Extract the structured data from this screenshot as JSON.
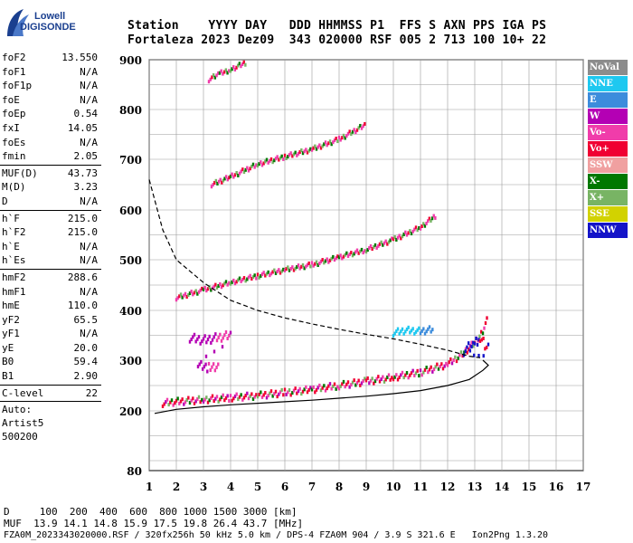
{
  "logo": {
    "line1": "Lowell",
    "line2": "DIGISONDE",
    "color": "#1a3f8f"
  },
  "header": {
    "line1": "Station    YYYY DAY   DDD HHMMSS P1  FFS S AXN PPS IGA PS",
    "line2": "Fortaleza 2023 Dez09  343 020000 RSF 005 2 713 100 10+ 22"
  },
  "params": [
    {
      "label": "foF2",
      "value": "13.550"
    },
    {
      "label": "foF1",
      "value": "N/A"
    },
    {
      "label": "foF1p",
      "value": "N/A"
    },
    {
      "label": "foE",
      "value": "N/A"
    },
    {
      "label": "foEp",
      "value": "0.54"
    },
    {
      "label": "fxI",
      "value": "14.05"
    },
    {
      "label": "foEs",
      "value": "N/A"
    },
    {
      "label": "fmin",
      "value": "2.05"
    },
    {
      "sep": true
    },
    {
      "label": "MUF(D)",
      "value": "43.73"
    },
    {
      "label": "M(D)",
      "value": "3.23"
    },
    {
      "label": "D",
      "value": "N/A"
    },
    {
      "sep": true
    },
    {
      "label": "h`F",
      "value": "215.0"
    },
    {
      "label": "h`F2",
      "value": "215.0"
    },
    {
      "label": "h`E",
      "value": "N/A"
    },
    {
      "label": "h`Es",
      "value": "N/A"
    },
    {
      "sep": true
    },
    {
      "label": "hmF2",
      "value": "288.6"
    },
    {
      "label": "hmF1",
      "value": "N/A"
    },
    {
      "label": "hmE",
      "value": "110.0"
    },
    {
      "label": "yF2",
      "value": "65.5"
    },
    {
      "label": "yF1",
      "value": "N/A"
    },
    {
      "label": "yE",
      "value": "20.0"
    },
    {
      "label": "B0",
      "value": "59.4"
    },
    {
      "label": "B1",
      "value": "2.90"
    },
    {
      "sep": true
    },
    {
      "label": "C-level",
      "value": "22"
    },
    {
      "sep": true
    }
  ],
  "auto": {
    "line1": "Auto:",
    "line2": "Artist5",
    "line3": "500200"
  },
  "legend": [
    {
      "label": "NoVal",
      "color": "#8c8c8c"
    },
    {
      "label": "NNE",
      "color": "#1ec8f0"
    },
    {
      "label": "E",
      "color": "#3c8cdc"
    },
    {
      "label": "W",
      "color": "#b400b4"
    },
    {
      "label": "Vo-",
      "color": "#f03caa"
    },
    {
      "label": "Vo+",
      "color": "#f00032"
    },
    {
      "label": "SSW",
      "color": "#f0a0a0"
    },
    {
      "label": "X-",
      "color": "#007800"
    },
    {
      "label": "X+",
      "color": "#78b464"
    },
    {
      "label": "SSE",
      "color": "#d2d200"
    },
    {
      "label": "NNW",
      "color": "#1414c8"
    }
  ],
  "footer": {
    "line1": "D     100  200  400  600  800 1000 1500 3000 [km]",
    "line2": "MUF  13.9 14.1 14.8 15.9 17.5 19.8 26.4 43.7 [MHz]",
    "line3": "FZA0M_2023343020000.RSF / 320fx256h 50 kHz 5.0 km / DPS-4 FZA0M 904 / 3.9 S 321.6 E   Ion2Png 1.3.20"
  },
  "chart_data": {
    "type": "scatter",
    "xlim": [
      1,
      17
    ],
    "ylim": [
      80,
      900
    ],
    "y_scale": "reciprocal (F layer height) -- heights mapped nonlinearly",
    "x_ticks": [
      1,
      2,
      3,
      4,
      5,
      6,
      7,
      8,
      9,
      10,
      11,
      12,
      13,
      14,
      15,
      16,
      17
    ],
    "y_ticks": [
      80,
      200,
      300,
      400,
      500,
      600,
      700,
      800,
      900
    ],
    "grid": true,
    "xlabel": "",
    "ylabel": "",
    "traces": [
      {
        "name": "F2 O-trace",
        "points": [
          [
            1.5,
            215
          ],
          [
            2,
            218
          ],
          [
            3,
            222
          ],
          [
            4,
            226
          ],
          [
            5,
            230
          ],
          [
            6,
            236
          ],
          [
            7,
            242
          ],
          [
            8,
            250
          ],
          [
            9,
            258
          ],
          [
            10,
            266
          ],
          [
            11,
            276
          ],
          [
            12,
            292
          ],
          [
            12.5,
            310
          ],
          [
            13,
            335
          ],
          [
            13.3,
            360
          ],
          [
            13.5,
            385
          ]
        ]
      },
      {
        "name": "F2 2nd hop",
        "points": [
          [
            2,
            425
          ],
          [
            3,
            440
          ],
          [
            4,
            455
          ],
          [
            5,
            468
          ],
          [
            6,
            480
          ],
          [
            7,
            490
          ],
          [
            8,
            505
          ],
          [
            9,
            520
          ],
          [
            10,
            540
          ],
          [
            11,
            565
          ],
          [
            11.6,
            590
          ]
        ]
      },
      {
        "name": "F2 3rd hop",
        "points": [
          [
            3.3,
            650
          ],
          [
            4,
            665
          ],
          [
            5,
            690
          ],
          [
            6,
            705
          ],
          [
            7,
            720
          ],
          [
            8,
            740
          ],
          [
            9,
            770
          ]
        ]
      },
      {
        "name": "F2 4th hop",
        "points": [
          [
            3.2,
            860
          ],
          [
            3.6,
            872
          ],
          [
            4,
            880
          ],
          [
            4.6,
            895
          ]
        ]
      },
      {
        "name": "Es/W cluster",
        "points": [
          [
            2.5,
            345
          ],
          [
            3,
            340
          ],
          [
            3.5,
            345
          ],
          [
            4,
            350
          ],
          [
            2.8,
            290
          ],
          [
            3.2,
            285
          ],
          [
            3.6,
            290
          ]
        ]
      },
      {
        "name": "NNE cluster",
        "points": [
          [
            10,
            355
          ],
          [
            10.5,
            360
          ],
          [
            11,
            358
          ],
          [
            11.5,
            362
          ]
        ]
      },
      {
        "name": "NNW cluster",
        "points": [
          [
            12.6,
            320
          ],
          [
            13,
            330
          ],
          [
            13.2,
            345
          ],
          [
            13.5,
            325
          ],
          [
            12.8,
            300
          ]
        ]
      }
    ],
    "profiles": [
      {
        "name": "MUF profile (dashed)",
        "style": "dashed",
        "points": [
          [
            1,
            660
          ],
          [
            1.5,
            560
          ],
          [
            2,
            500
          ],
          [
            3,
            455
          ],
          [
            4,
            420
          ],
          [
            5,
            400
          ],
          [
            6,
            385
          ],
          [
            7,
            373
          ],
          [
            8,
            362
          ],
          [
            9,
            352
          ],
          [
            10,
            343
          ],
          [
            11,
            332
          ],
          [
            12,
            320
          ],
          [
            12.8,
            308
          ],
          [
            13.2,
            305
          ]
        ]
      },
      {
        "name": "Electron density profile",
        "style": "solid",
        "points": [
          [
            1.2,
            195
          ],
          [
            2,
            203
          ],
          [
            3,
            208
          ],
          [
            4,
            212
          ],
          [
            5,
            215
          ],
          [
            6,
            218
          ],
          [
            7,
            221
          ],
          [
            8,
            225
          ],
          [
            9,
            229
          ],
          [
            10,
            234
          ],
          [
            11,
            240
          ],
          [
            12,
            250
          ],
          [
            12.8,
            262
          ],
          [
            13.3,
            280
          ],
          [
            13.5,
            290
          ],
          [
            13.3,
            300
          ]
        ]
      }
    ]
  }
}
